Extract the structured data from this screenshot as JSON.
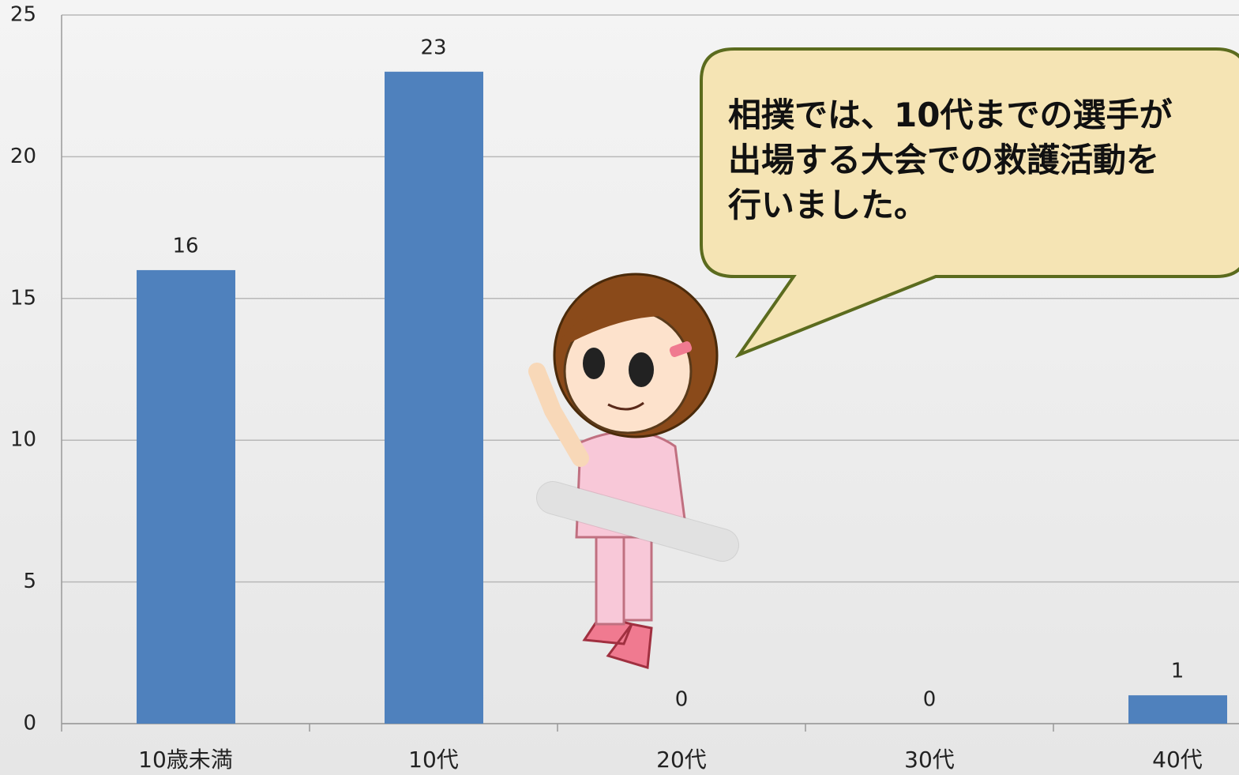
{
  "chart_data": {
    "type": "bar",
    "categories": [
      "10歳未満",
      "10代",
      "20代",
      "30代",
      "40代"
    ],
    "values": [
      16,
      23,
      0,
      0,
      1
    ],
    "color": "#4f81bd",
    "ylim": [
      0,
      25
    ],
    "yticks": [
      0,
      5,
      10,
      15,
      20,
      25
    ],
    "grid": true,
    "annotation": [
      "相撲では、10代までの選手が",
      "出場する大会での救護活動を",
      "行いました。"
    ]
  }
}
